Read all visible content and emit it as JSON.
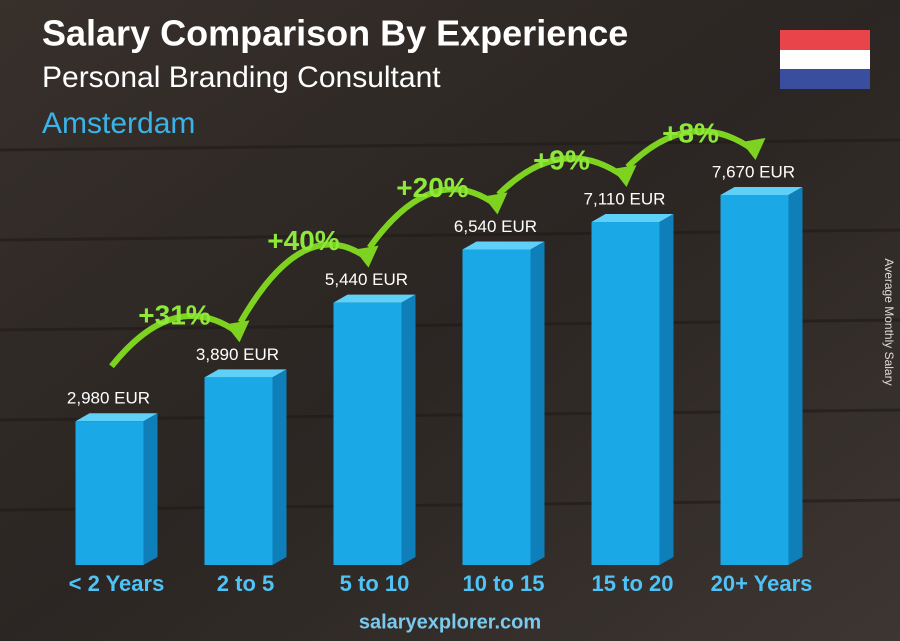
{
  "chart_data": {
    "type": "bar",
    "title": "Salary Comparison By Experience",
    "subtitle": "Personal Branding Consultant",
    "location": "Amsterdam",
    "categories": [
      "< 2 Years",
      "2 to 5",
      "5 to 10",
      "10 to 15",
      "15 to 20",
      "20+ Years"
    ],
    "values": [
      2980,
      3890,
      5440,
      6540,
      7110,
      7670
    ],
    "value_labels": [
      "2,980 EUR",
      "3,890 EUR",
      "5,440 EUR",
      "6,540 EUR",
      "7,110 EUR",
      "7,670 EUR"
    ],
    "changes": [
      "+31%",
      "+40%",
      "+20%",
      "+9%",
      "+8%"
    ],
    "color": "#1aa8e6",
    "side_label": "Average Monthly Salary",
    "footer": "salaryexplorer.com"
  }
}
